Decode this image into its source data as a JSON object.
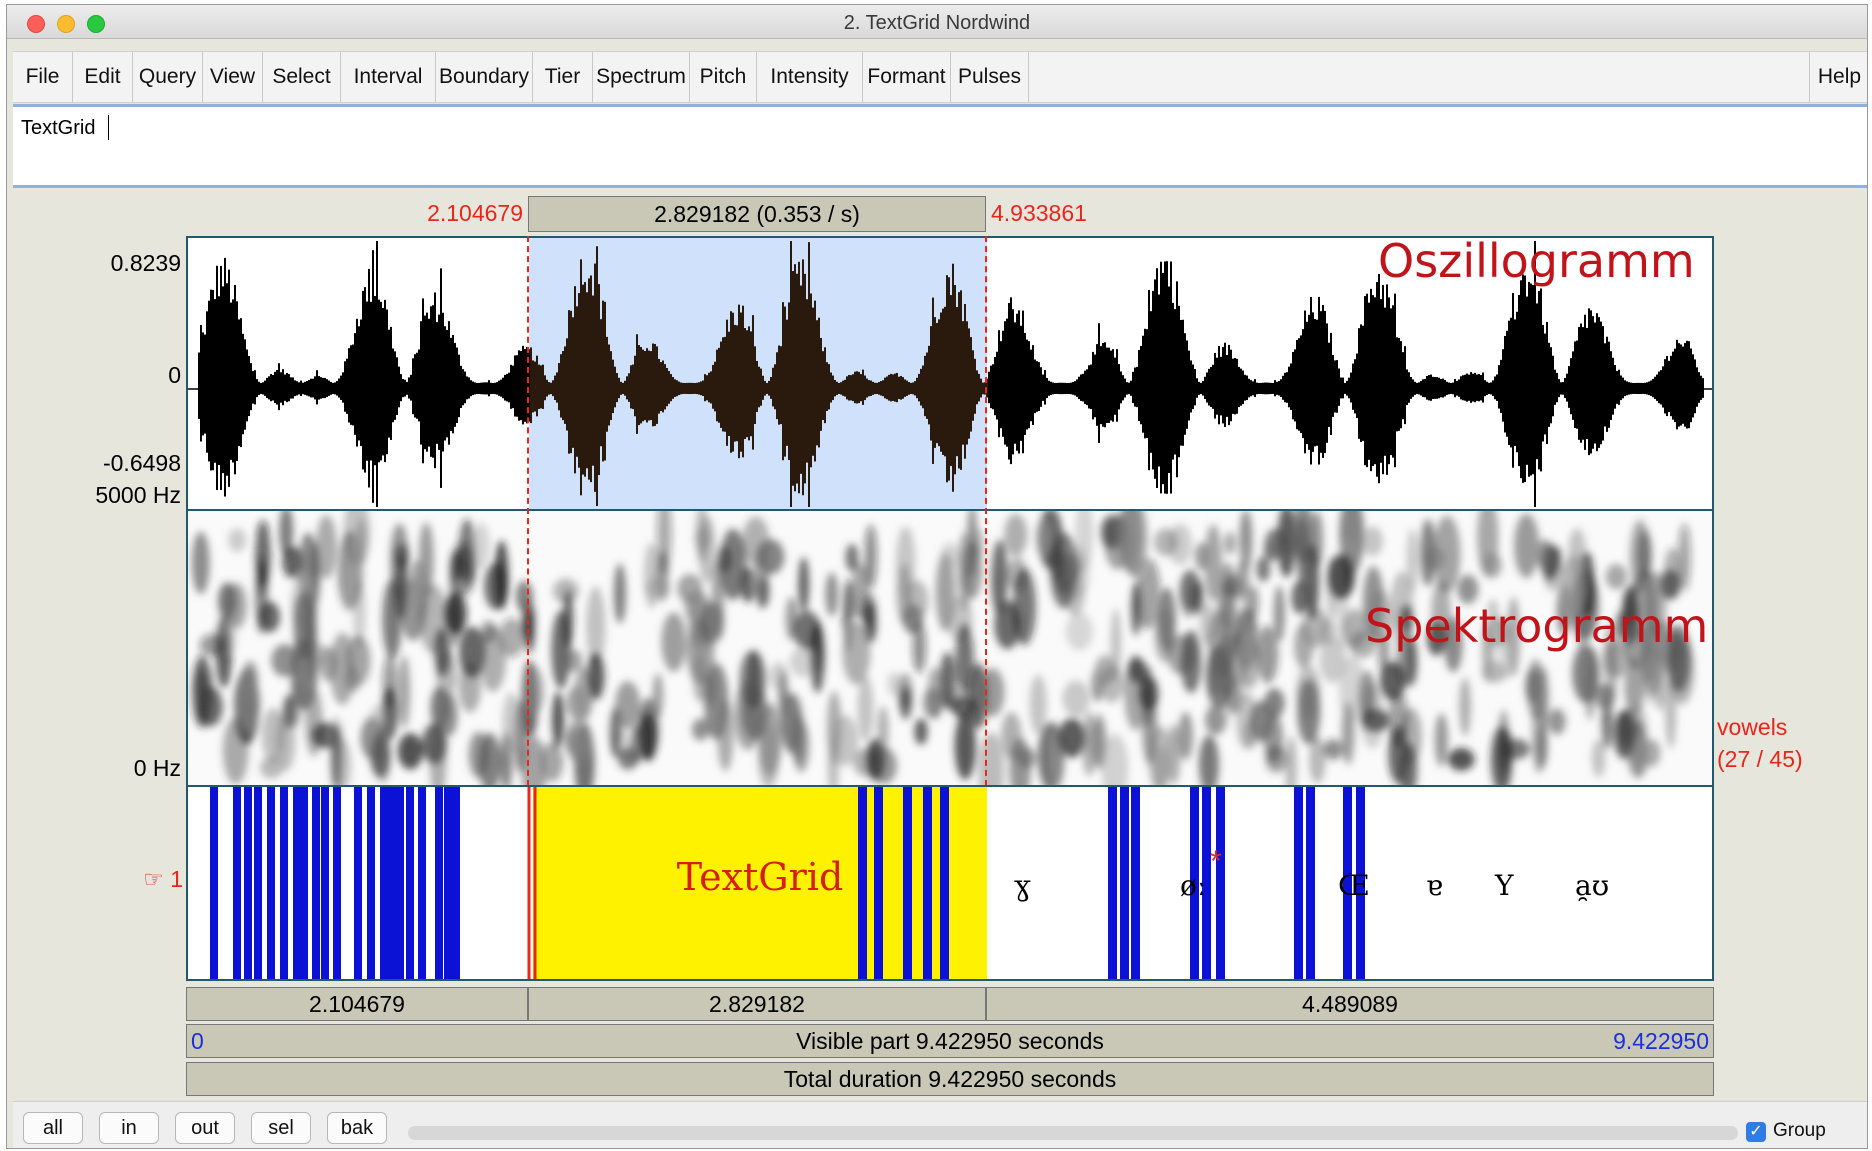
{
  "window": {
    "title": "2. TextGrid Nordwind"
  },
  "menu": [
    "File",
    "Edit",
    "Query",
    "View",
    "Select",
    "Interval",
    "Boundary",
    "Tier",
    "Spectrum",
    "Pitch",
    "Intensity",
    "Formant",
    "Pulses"
  ],
  "help": "Help",
  "text_field": {
    "value": "TextGrid"
  },
  "selection": {
    "start": "2.104679",
    "end": "4.933861",
    "header": "2.829182 (0.353 / s)"
  },
  "oscillogram": {
    "label": "Oszillogramm",
    "y_max": "0.8239",
    "y_zero": "0",
    "y_min": "-0.6498"
  },
  "spectrogram": {
    "label": "Spektrogramm",
    "f_max": "5000 Hz",
    "f_min": "0 Hz"
  },
  "tier": {
    "pointer": "☞ 1",
    "name": "vowels",
    "count": "(27 / 45)",
    "selected_label": "TextGrid",
    "intervals": [
      {
        "label": "ɣ"
      },
      {
        "label": "øː"
      },
      {
        "label": "*"
      },
      {
        "label": "Œ"
      },
      {
        "label": "ɐ"
      },
      {
        "label": "Y"
      },
      {
        "label": "a̯ʊ"
      }
    ]
  },
  "durations": {
    "left": "2.104679",
    "selected": "2.829182",
    "right": "4.489089"
  },
  "visible": {
    "start": "0",
    "text": "Visible part 9.422950 seconds",
    "end": "9.422950"
  },
  "total": {
    "text": "Total duration 9.422950 seconds"
  },
  "zoom_buttons": [
    "all",
    "in",
    "out",
    "sel",
    "bak"
  ],
  "group": {
    "label": "Group",
    "checked": true
  }
}
